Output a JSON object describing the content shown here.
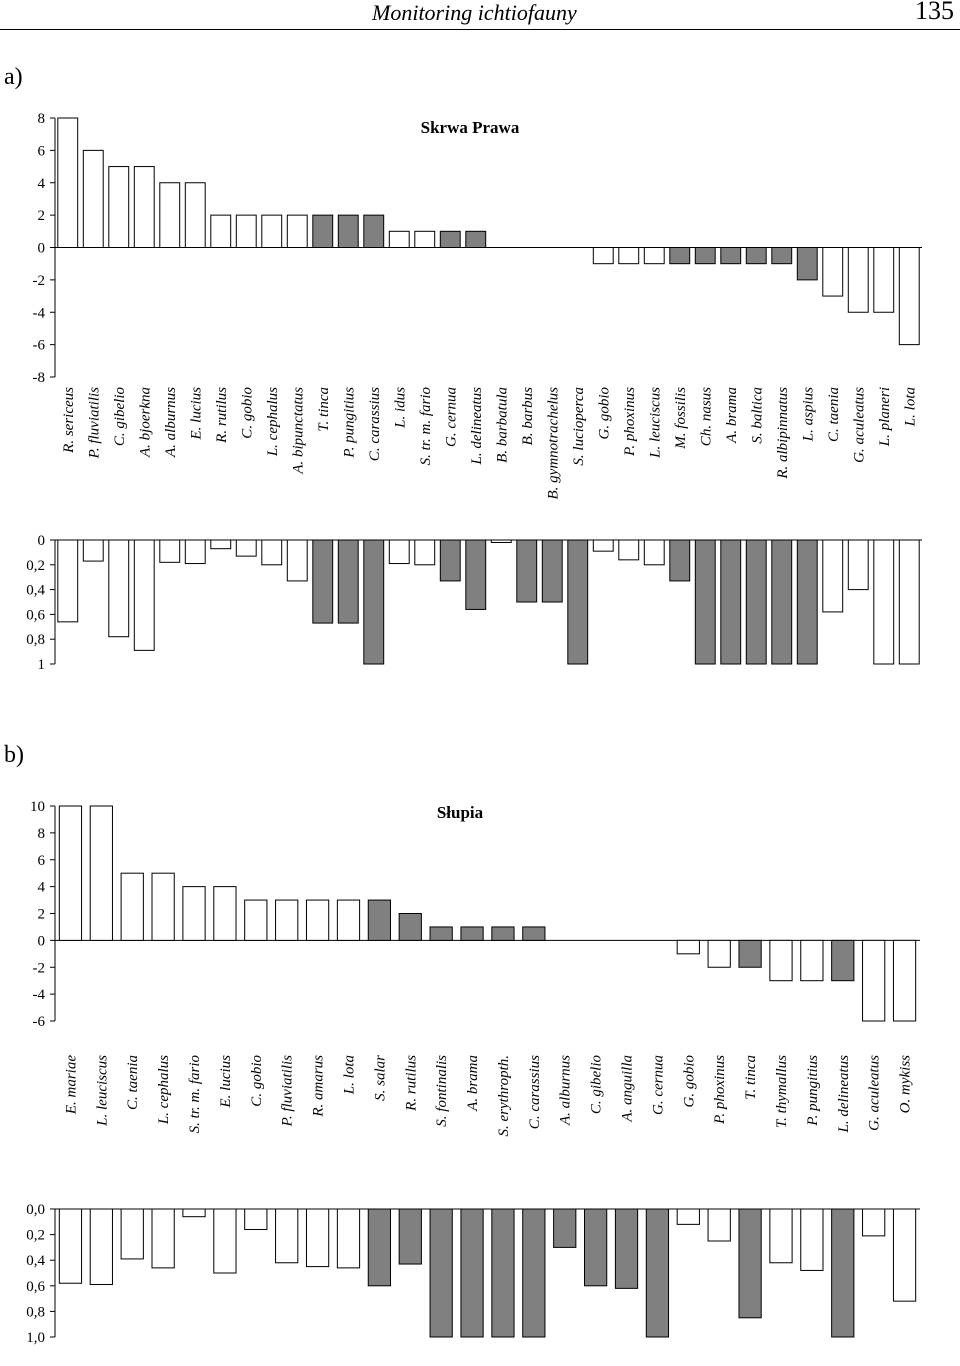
{
  "header": {
    "title": "Monitoring ichtiofauny",
    "page_number": "135"
  },
  "panels": [
    {
      "label": "a)"
    },
    {
      "label": "b)"
    }
  ],
  "colors": {
    "open": "#ffffff",
    "filled": "#808080",
    "stroke": "#000000"
  },
  "chart_data": [
    {
      "type": "bar",
      "title": "Skrwa Prawa",
      "categories": [
        "R. sericeus",
        "P. fluviatilis",
        "C. gibelio",
        "A. bjoerkna",
        "A. alburnus",
        "E. lucius",
        "R. rutilus",
        "C. gobio",
        "L. cephalus",
        "A. bipunctatus",
        "T. tinca",
        "P. pungitius",
        "C. carassius",
        "L. idus",
        "S. tr. m. fario",
        "G. cernua",
        "L. delineatus",
        "B. barbatula",
        "B. barbus",
        "B. gymnotrachelus",
        "S. lucioperca",
        "G. gobio",
        "P. phoxinus",
        "L. leuciscus",
        "M. fossilis",
        "Ch. nasus",
        "A. brama",
        "S. baltica",
        "R. albipinnatus",
        "L. aspius",
        "C. taenia",
        "G. aculeatus",
        "L. planeri",
        "L. lota"
      ],
      "filled": [
        false,
        false,
        false,
        false,
        false,
        false,
        false,
        false,
        false,
        false,
        true,
        true,
        true,
        false,
        false,
        true,
        true,
        false,
        true,
        true,
        true,
        false,
        false,
        false,
        true,
        true,
        true,
        true,
        true,
        true,
        false,
        false,
        false,
        false
      ],
      "values": [
        8,
        6,
        5,
        5,
        4,
        4,
        2,
        2,
        2,
        2,
        2,
        2,
        2,
        1,
        1,
        1,
        1,
        0,
        0,
        0,
        0,
        -1,
        -1,
        -1,
        -1,
        -1,
        -1,
        -1,
        -1,
        -2,
        -3,
        -4,
        -4,
        -6
      ],
      "ylim": [
        -8,
        8
      ],
      "yticks": [
        "8",
        "6",
        "4",
        "2",
        "0",
        "-2",
        "-4",
        "-6",
        "-8"
      ],
      "lower": {
        "values": [
          0.66,
          0.17,
          0.78,
          0.89,
          0.18,
          0.19,
          0.07,
          0.13,
          0.2,
          0.33,
          0.67,
          0.67,
          1,
          0.19,
          0.2,
          0.33,
          0.56,
          0.02,
          0.5,
          0.5,
          1,
          0.09,
          0.16,
          0.2,
          0.33,
          1,
          1,
          1,
          1,
          1,
          0.58,
          0.4,
          1,
          1
        ],
        "ylim": [
          0,
          1
        ],
        "yticks": [
          "0",
          "0,2",
          "0,4",
          "0,6",
          "0,8",
          "1"
        ]
      }
    },
    {
      "type": "bar",
      "title": "Słupia",
      "categories": [
        "E. mariae",
        "L. leuciscus",
        "C. taenia",
        "L. cephalus",
        "S. tr. m. fario",
        "E. lucius",
        "C. gobio",
        "P. fluviatilis",
        "R. amarus",
        "L. lota",
        "S. salar",
        "R. rutilus",
        "S. fontinalis",
        "A. brama",
        "S. erythropth.",
        "C. carassius",
        "A. alburnus",
        "C. gibelio",
        "A. anguilla",
        "G. cernua",
        "G. gobio",
        "P. phoxinus",
        "T. tinca",
        "T. thymallus",
        "P. pungitius",
        "L. delineatus",
        "G. aculeatus",
        "O. mykiss"
      ],
      "filled": [
        false,
        false,
        false,
        false,
        false,
        false,
        false,
        false,
        false,
        false,
        true,
        true,
        true,
        true,
        true,
        true,
        true,
        true,
        true,
        true,
        false,
        false,
        true,
        false,
        false,
        true,
        false,
        false
      ],
      "values": [
        10,
        10,
        5,
        5,
        4,
        4,
        3,
        3,
        3,
        3,
        3,
        2,
        1,
        1,
        1,
        1,
        0,
        0,
        0,
        0,
        -1,
        -2,
        -2,
        -3,
        -3,
        -3,
        -6,
        -6
      ],
      "ylim": [
        -6,
        10
      ],
      "yticks": [
        "10",
        "8",
        "6",
        "4",
        "2",
        "0",
        "-2",
        "-4",
        "-6"
      ],
      "lower": {
        "values": [
          0.58,
          0.59,
          0.39,
          0.46,
          0.06,
          0.5,
          0.16,
          0.42,
          0.45,
          0.46,
          0.6,
          0.43,
          1,
          1,
          1,
          1,
          0.3,
          0.6,
          0.62,
          1,
          0.12,
          0.25,
          0.85,
          0.42,
          0.48,
          1,
          0.21,
          0.72
        ],
        "ylim": [
          0,
          1
        ],
        "yticks": [
          "0,0",
          "0,2",
          "0,4",
          "0,6",
          "0,8",
          "1,0"
        ]
      }
    }
  ]
}
